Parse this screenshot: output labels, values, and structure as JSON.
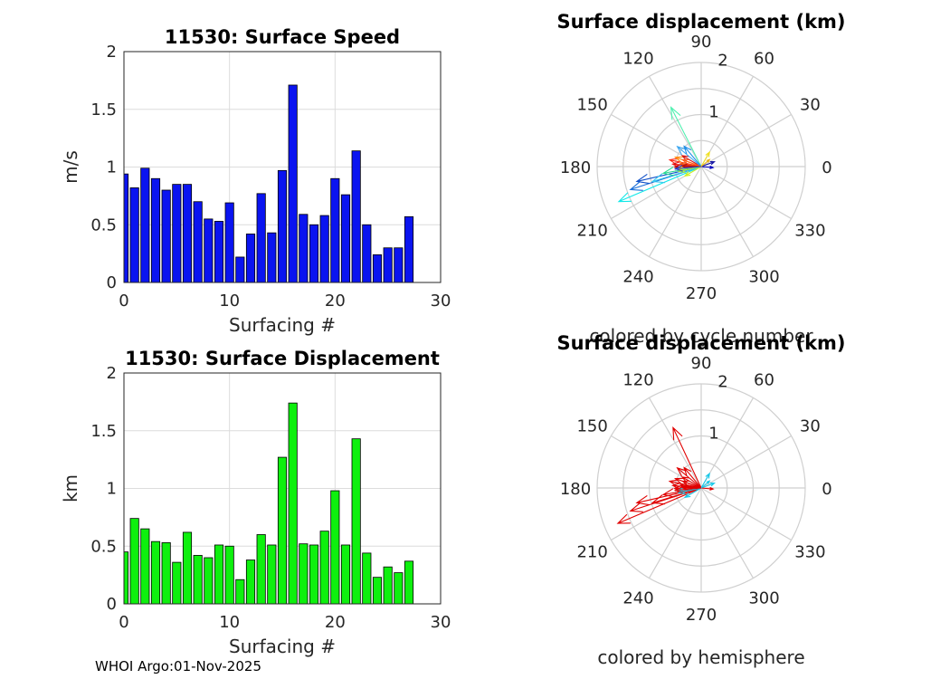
{
  "footer": "WHOI Argo:01-Nov-2025",
  "chart_data": [
    {
      "id": "speed",
      "type": "bar",
      "title": "11530: Surface Speed",
      "xlabel": "Surfacing #",
      "ylabel": "m/s",
      "xlim": [
        0,
        30
      ],
      "ylim": [
        0,
        2
      ],
      "xticks": [
        "0",
        "10",
        "20",
        "30"
      ],
      "yticks": [
        "0",
        "0.5",
        "1",
        "1.5",
        "2"
      ],
      "color": "#0a14f0",
      "x": [
        0,
        1,
        2,
        3,
        4,
        5,
        6,
        7,
        8,
        9,
        10,
        11,
        12,
        13,
        14,
        15,
        16,
        17,
        18,
        19,
        20,
        21,
        22,
        23,
        24,
        25,
        26,
        27
      ],
      "values": [
        0.94,
        0.82,
        0.99,
        0.9,
        0.8,
        0.85,
        0.85,
        0.7,
        0.55,
        0.53,
        0.69,
        0.22,
        0.42,
        0.77,
        0.43,
        0.97,
        1.71,
        0.59,
        0.5,
        0.58,
        0.9,
        0.76,
        1.14,
        0.5,
        0.24,
        0.3,
        0.3,
        0.57
      ]
    },
    {
      "id": "displacement",
      "type": "bar",
      "title": "11530: Surface Displacement",
      "xlabel": "Surfacing #",
      "ylabel": "km",
      "xlim": [
        0,
        30
      ],
      "ylim": [
        0,
        2
      ],
      "xticks": [
        "0",
        "10",
        "20",
        "30"
      ],
      "yticks": [
        "0",
        "0.5",
        "1",
        "1.5",
        "2"
      ],
      "color": "#0ef00e",
      "x": [
        0,
        1,
        2,
        3,
        4,
        5,
        6,
        7,
        8,
        9,
        10,
        11,
        12,
        13,
        14,
        15,
        16,
        17,
        18,
        19,
        20,
        21,
        22,
        23,
        24,
        25,
        26,
        27
      ],
      "values": [
        0.45,
        0.74,
        0.65,
        0.54,
        0.53,
        0.36,
        0.62,
        0.42,
        0.4,
        0.51,
        0.5,
        0.21,
        0.38,
        0.6,
        0.51,
        1.27,
        1.74,
        0.52,
        0.51,
        0.63,
        0.98,
        0.51,
        1.43,
        0.44,
        0.23,
        0.32,
        0.27,
        0.37
      ]
    },
    {
      "id": "polar_cycle",
      "type": "polar-quiver",
      "title": "Surface displacement (km)",
      "caption": "colored by cycle number",
      "rmax": 2,
      "rticks": [
        "1",
        "2"
      ],
      "angle_labels": [
        "0",
        "30",
        "60",
        "90",
        "120",
        "150",
        "180",
        "210",
        "240",
        "270",
        "300",
        "330"
      ],
      "vectors": [
        {
          "r": 1.72,
          "deg": 203,
          "color": "#11e8e8"
        },
        {
          "r": 1.43,
          "deg": 198,
          "color": "#1a6fd8"
        },
        {
          "r": 1.27,
          "deg": 193,
          "color": "#1050c8"
        },
        {
          "r": 0.98,
          "deg": 197,
          "color": "#36c8f0"
        },
        {
          "r": 0.74,
          "deg": 190,
          "color": "#28d890"
        },
        {
          "r": 1.28,
          "deg": 117,
          "color": "#50f0b0"
        },
        {
          "r": 0.62,
          "deg": 168,
          "color": "#ff2a1a"
        },
        {
          "r": 0.55,
          "deg": 175,
          "color": "#e81010"
        },
        {
          "r": 0.51,
          "deg": 181,
          "color": "#c00000"
        },
        {
          "r": 0.53,
          "deg": 160,
          "color": "#ff8a10"
        },
        {
          "r": 0.45,
          "deg": 186,
          "color": "#f0d010"
        },
        {
          "r": 0.42,
          "deg": 150,
          "color": "#d81818"
        },
        {
          "r": 0.4,
          "deg": 172,
          "color": "#f05010"
        },
        {
          "r": 0.6,
          "deg": 140,
          "color": "#40a8f0"
        },
        {
          "r": 0.51,
          "deg": 130,
          "color": "#2090e8"
        },
        {
          "r": 0.38,
          "deg": 160,
          "color": "#ff6020"
        },
        {
          "r": 0.44,
          "deg": 192,
          "color": "#a0f040"
        },
        {
          "r": 0.36,
          "deg": 210,
          "color": "#d0f020"
        },
        {
          "r": 0.32,
          "deg": 60,
          "color": "#f0e020"
        },
        {
          "r": 0.27,
          "deg": 20,
          "color": "#1010a0"
        },
        {
          "r": 0.23,
          "deg": 355,
          "color": "#0000c0"
        },
        {
          "r": 0.21,
          "deg": 40,
          "color": "#e8b010"
        },
        {
          "r": 0.37,
          "deg": 178,
          "color": "#b01010"
        },
        {
          "r": 0.5,
          "deg": 185,
          "color": "#2040d0"
        }
      ]
    },
    {
      "id": "polar_hemisphere",
      "type": "polar-quiver",
      "title": "Surface displacement (km)",
      "caption": "colored by hemisphere",
      "rmax": 2,
      "rticks": [
        "1",
        "2"
      ],
      "angle_labels": [
        "0",
        "30",
        "60",
        "90",
        "120",
        "150",
        "180",
        "210",
        "240",
        "270",
        "300",
        "330"
      ],
      "vectors": [
        {
          "r": 1.74,
          "deg": 203,
          "color": "#e00000"
        },
        {
          "r": 1.43,
          "deg": 198,
          "color": "#e00000"
        },
        {
          "r": 1.27,
          "deg": 193,
          "color": "#e00000"
        },
        {
          "r": 0.98,
          "deg": 197,
          "color": "#e00000"
        },
        {
          "r": 1.28,
          "deg": 115,
          "color": "#e00000"
        },
        {
          "r": 0.74,
          "deg": 190,
          "color": "#e00000"
        },
        {
          "r": 0.62,
          "deg": 168,
          "color": "#e00000"
        },
        {
          "r": 0.55,
          "deg": 175,
          "color": "#e00000"
        },
        {
          "r": 0.51,
          "deg": 181,
          "color": "#e00000"
        },
        {
          "r": 0.53,
          "deg": 160,
          "color": "#e00000"
        },
        {
          "r": 0.6,
          "deg": 140,
          "color": "#e00000"
        },
        {
          "r": 0.51,
          "deg": 130,
          "color": "#e00000"
        },
        {
          "r": 0.42,
          "deg": 150,
          "color": "#e00000"
        },
        {
          "r": 0.4,
          "deg": 172,
          "color": "#e00000"
        },
        {
          "r": 0.38,
          "deg": 160,
          "color": "#e00000"
        },
        {
          "r": 0.45,
          "deg": 186,
          "color": "#18c8e8"
        },
        {
          "r": 0.44,
          "deg": 192,
          "color": "#18c8e8"
        },
        {
          "r": 0.36,
          "deg": 210,
          "color": "#18c8e8"
        },
        {
          "r": 0.32,
          "deg": 60,
          "color": "#18c8e8"
        },
        {
          "r": 0.27,
          "deg": 20,
          "color": "#18c8e8"
        },
        {
          "r": 0.23,
          "deg": 355,
          "color": "#e00000"
        },
        {
          "r": 0.21,
          "deg": 40,
          "color": "#18c8e8"
        },
        {
          "r": 0.37,
          "deg": 178,
          "color": "#e00000"
        },
        {
          "r": 0.5,
          "deg": 185,
          "color": "#e00000"
        }
      ]
    }
  ]
}
